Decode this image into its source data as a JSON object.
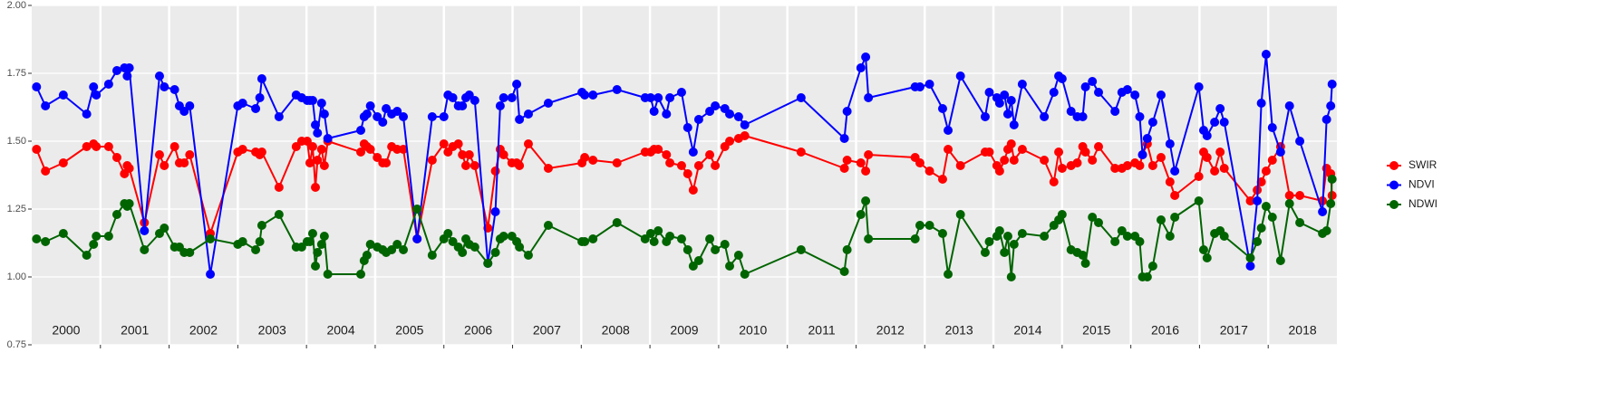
{
  "chart_data": {
    "type": "line",
    "x": [
      2000.07,
      2000.2,
      2000.46,
      2000.8,
      2000.9,
      2000.94,
      2001.12,
      2001.24,
      2001.35,
      2001.39,
      2001.42,
      2001.64,
      2001.86,
      2001.93,
      2002.08,
      2002.15,
      2002.22,
      2002.3,
      2002.6,
      2003.0,
      2003.07,
      2003.26,
      2003.32,
      2003.35,
      2003.6,
      2003.85,
      2003.93,
      2004.01,
      2004.05,
      2004.09,
      2004.13,
      2004.16,
      2004.22,
      2004.26,
      2004.31,
      2004.79,
      2004.84,
      2004.88,
      2004.93,
      2005.03,
      2005.11,
      2005.16,
      2005.24,
      2005.32,
      2005.41,
      2005.61,
      2005.83,
      2006.0,
      2006.06,
      2006.13,
      2006.21,
      2006.27,
      2006.32,
      2006.37,
      2006.45,
      2006.64,
      2006.75,
      2006.82,
      2006.87,
      2006.99,
      2007.06,
      2007.1,
      2007.23,
      2007.52,
      2008.01,
      2008.05,
      2008.17,
      2008.52,
      2008.93,
      2009.01,
      2009.06,
      2009.12,
      2009.24,
      2009.29,
      2009.46,
      2009.55,
      2009.63,
      2009.71,
      2009.87,
      2009.95,
      2010.09,
      2010.16,
      2010.29,
      2010.38,
      2011.2,
      2011.83,
      2011.87,
      2012.07,
      2012.14,
      2012.18,
      2012.86,
      2012.93,
      2013.07,
      2013.26,
      2013.34,
      2013.52,
      2013.88,
      2013.94,
      2014.05,
      2014.09,
      2014.16,
      2014.21,
      2014.26,
      2014.3,
      2014.42,
      2014.74,
      2014.88,
      2014.95,
      2015.0,
      2015.13,
      2015.22,
      2015.3,
      2015.34,
      2015.44,
      2015.53,
      2015.77,
      2015.87,
      2015.95,
      2016.06,
      2016.13,
      2016.17,
      2016.24,
      2016.32,
      2016.44,
      2016.57,
      2016.64,
      2016.99,
      2017.06,
      2017.11,
      2017.22,
      2017.3,
      2017.36,
      2017.74,
      2017.84,
      2017.9,
      2017.97,
      2018.06,
      2018.18,
      2018.31,
      2018.46,
      2018.79,
      2018.85,
      2018.91,
      2018.93
    ],
    "series": [
      {
        "name": "SWIR",
        "color": "#ff0000",
        "values": [
          1.47,
          1.39,
          1.42,
          1.48,
          1.49,
          1.48,
          1.48,
          1.44,
          1.38,
          1.41,
          1.4,
          1.2,
          1.45,
          1.41,
          1.48,
          1.42,
          1.42,
          1.45,
          1.16,
          1.46,
          1.47,
          1.46,
          1.45,
          1.46,
          1.33,
          1.48,
          1.5,
          1.5,
          1.42,
          1.48,
          1.33,
          1.43,
          1.47,
          1.41,
          1.5,
          1.46,
          1.49,
          1.48,
          1.47,
          1.44,
          1.42,
          1.42,
          1.48,
          1.47,
          1.47,
          1.14,
          1.43,
          1.49,
          1.46,
          1.48,
          1.49,
          1.45,
          1.41,
          1.45,
          1.41,
          1.18,
          1.39,
          1.47,
          1.45,
          1.42,
          1.42,
          1.41,
          1.49,
          1.4,
          1.42,
          1.44,
          1.43,
          1.42,
          1.46,
          1.46,
          1.47,
          1.47,
          1.45,
          1.42,
          1.41,
          1.38,
          1.32,
          1.41,
          1.45,
          1.41,
          1.48,
          1.5,
          1.51,
          1.52,
          1.46,
          1.4,
          1.43,
          1.42,
          1.39,
          1.45,
          1.44,
          1.42,
          1.39,
          1.36,
          1.47,
          1.41,
          1.46,
          1.46,
          1.41,
          1.39,
          1.43,
          1.47,
          1.49,
          1.43,
          1.47,
          1.43,
          1.35,
          1.46,
          1.4,
          1.41,
          1.42,
          1.48,
          1.46,
          1.43,
          1.48,
          1.4,
          1.4,
          1.41,
          1.42,
          1.41,
          1.45,
          1.49,
          1.41,
          1.44,
          1.35,
          1.3,
          1.37,
          1.46,
          1.44,
          1.39,
          1.46,
          1.4,
          1.28,
          1.32,
          1.35,
          1.39,
          1.43,
          1.48,
          1.3,
          1.3,
          1.28,
          1.4,
          1.38,
          1.3
        ]
      },
      {
        "name": "NDVI",
        "color": "#0000ff",
        "values": [
          1.7,
          1.63,
          1.67,
          1.6,
          1.7,
          1.67,
          1.71,
          1.76,
          1.77,
          1.74,
          1.77,
          1.17,
          1.74,
          1.7,
          1.69,
          1.63,
          1.61,
          1.63,
          1.01,
          1.63,
          1.64,
          1.62,
          1.66,
          1.73,
          1.59,
          1.67,
          1.66,
          1.65,
          1.65,
          1.65,
          1.56,
          1.53,
          1.64,
          1.6,
          1.51,
          1.54,
          1.59,
          1.6,
          1.63,
          1.59,
          1.57,
          1.62,
          1.6,
          1.61,
          1.59,
          1.14,
          1.59,
          1.59,
          1.67,
          1.66,
          1.63,
          1.63,
          1.66,
          1.67,
          1.65,
          1.05,
          1.24,
          1.63,
          1.66,
          1.66,
          1.71,
          1.58,
          1.6,
          1.64,
          1.68,
          1.67,
          1.67,
          1.69,
          1.66,
          1.66,
          1.61,
          1.66,
          1.6,
          1.66,
          1.68,
          1.55,
          1.46,
          1.58,
          1.61,
          1.63,
          1.62,
          1.6,
          1.59,
          1.56,
          1.66,
          1.51,
          1.61,
          1.77,
          1.81,
          1.66,
          1.7,
          1.7,
          1.71,
          1.62,
          1.54,
          1.74,
          1.59,
          1.68,
          1.66,
          1.64,
          1.67,
          1.6,
          1.65,
          1.56,
          1.71,
          1.59,
          1.68,
          1.74,
          1.73,
          1.61,
          1.59,
          1.59,
          1.7,
          1.72,
          1.68,
          1.61,
          1.68,
          1.69,
          1.67,
          1.59,
          1.45,
          1.51,
          1.57,
          1.67,
          1.49,
          1.39,
          1.7,
          1.54,
          1.52,
          1.57,
          1.62,
          1.57,
          1.04,
          1.28,
          1.64,
          1.82,
          1.55,
          1.46,
          1.63,
          1.5,
          1.24,
          1.58,
          1.63,
          1.71
        ]
      },
      {
        "name": "NDWI",
        "color": "#006400",
        "values": [
          1.14,
          1.13,
          1.16,
          1.08,
          1.12,
          1.15,
          1.15,
          1.23,
          1.27,
          1.26,
          1.27,
          1.1,
          1.16,
          1.18,
          1.11,
          1.11,
          1.09,
          1.09,
          1.14,
          1.12,
          1.13,
          1.1,
          1.13,
          1.19,
          1.23,
          1.11,
          1.11,
          1.13,
          1.13,
          1.16,
          1.04,
          1.09,
          1.12,
          1.15,
          1.01,
          1.01,
          1.06,
          1.08,
          1.12,
          1.11,
          1.1,
          1.09,
          1.1,
          1.12,
          1.1,
          1.25,
          1.08,
          1.14,
          1.16,
          1.13,
          1.11,
          1.09,
          1.14,
          1.12,
          1.11,
          1.05,
          1.09,
          1.14,
          1.15,
          1.15,
          1.13,
          1.11,
          1.08,
          1.19,
          1.13,
          1.13,
          1.14,
          1.2,
          1.14,
          1.16,
          1.13,
          1.17,
          1.13,
          1.15,
          1.14,
          1.1,
          1.04,
          1.06,
          1.14,
          1.1,
          1.12,
          1.04,
          1.08,
          1.01,
          1.1,
          1.02,
          1.1,
          1.23,
          1.28,
          1.14,
          1.14,
          1.19,
          1.19,
          1.16,
          1.01,
          1.23,
          1.09,
          1.13,
          1.15,
          1.17,
          1.09,
          1.15,
          1.0,
          1.12,
          1.16,
          1.15,
          1.19,
          1.21,
          1.23,
          1.1,
          1.09,
          1.08,
          1.05,
          1.22,
          1.2,
          1.13,
          1.17,
          1.15,
          1.15,
          1.13,
          1.0,
          1.0,
          1.04,
          1.21,
          1.15,
          1.22,
          1.28,
          1.1,
          1.07,
          1.16,
          1.17,
          1.15,
          1.07,
          1.13,
          1.18,
          1.26,
          1.22,
          1.06,
          1.27,
          1.2,
          1.16,
          1.17,
          1.27,
          1.36
        ]
      }
    ],
    "xlim": [
      2000,
      2019
    ],
    "xticks": [
      {
        "value": 2000.5,
        "label": "2000"
      },
      {
        "value": 2001.5,
        "label": "2001"
      },
      {
        "value": 2002.5,
        "label": "2002"
      },
      {
        "value": 2003.5,
        "label": "2003"
      },
      {
        "value": 2004.5,
        "label": "2004"
      },
      {
        "value": 2005.5,
        "label": "2005"
      },
      {
        "value": 2006.5,
        "label": "2006"
      },
      {
        "value": 2007.5,
        "label": "2007"
      },
      {
        "value": 2008.5,
        "label": "2008"
      },
      {
        "value": 2009.5,
        "label": "2009"
      },
      {
        "value": 2010.5,
        "label": "2010"
      },
      {
        "value": 2011.5,
        "label": "2011"
      },
      {
        "value": 2012.5,
        "label": "2012"
      },
      {
        "value": 2013.5,
        "label": "2013"
      },
      {
        "value": 2014.5,
        "label": "2014"
      },
      {
        "value": 2015.5,
        "label": "2015"
      },
      {
        "value": 2016.5,
        "label": "2016"
      },
      {
        "value": 2017.5,
        "label": "2017"
      },
      {
        "value": 2018.5,
        "label": "2018"
      }
    ],
    "ylim": [
      0.75,
      2.0
    ],
    "yticks": [
      {
        "value": 0.75,
        "label": "0.75"
      },
      {
        "value": 1.0,
        "label": "1.00"
      },
      {
        "value": 1.25,
        "label": "1.25"
      },
      {
        "value": 1.5,
        "label": "1.50"
      },
      {
        "value": 1.75,
        "label": "1.75"
      },
      {
        "value": 2.0,
        "label": "2.00"
      }
    ],
    "grid": true,
    "legend": "right"
  }
}
